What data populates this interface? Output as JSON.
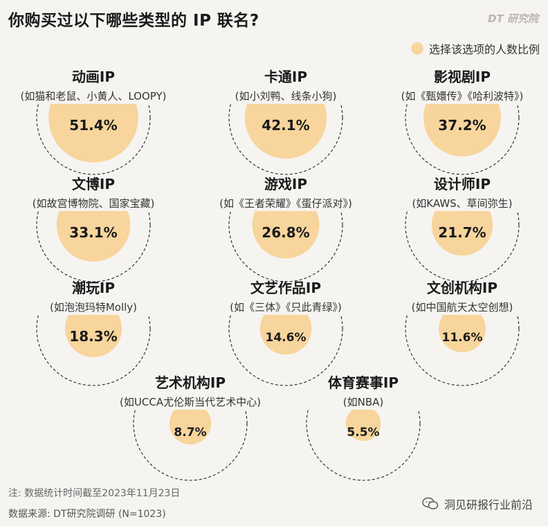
{
  "header": {
    "title": "你购买过以下哪些类型的 IP 联名?",
    "brand": "DT 研究院"
  },
  "legend": {
    "label": "选择该选项的人数比例",
    "color": "#f7d59c"
  },
  "chart_data": {
    "type": "bubble-percentage",
    "unit": "%",
    "fill_color": "#f7d59c",
    "items": [
      {
        "name": "动画IP",
        "subtitle": "(如猫和老鼠、小黄人、LOOPY)",
        "value": 51.4,
        "label": "51.4%"
      },
      {
        "name": "卡通IP",
        "subtitle": "(如小刘鸭、线条小狗)",
        "value": 42.1,
        "label": "42.1%"
      },
      {
        "name": "影视剧IP",
        "subtitle": "(如《甄嬛传》《哈利波特》)",
        "value": 37.2,
        "label": "37.2%"
      },
      {
        "name": "文博IP",
        "subtitle": "(如故宫博物院、国家宝藏)",
        "value": 33.1,
        "label": "33.1%"
      },
      {
        "name": "游戏IP",
        "subtitle": "(如《王者荣耀》《蛋仔派对》)",
        "value": 26.8,
        "label": "26.8%"
      },
      {
        "name": "设计师IP",
        "subtitle": "(如KAWS、草间弥生)",
        "value": 21.7,
        "label": "21.7%"
      },
      {
        "name": "潮玩IP",
        "subtitle": "(如泡泡玛特Molly)",
        "value": 18.3,
        "label": "18.3%"
      },
      {
        "name": "文艺作品IP",
        "subtitle": "(如《三体》《只此青绿》)",
        "value": 14.6,
        "label": "14.6%"
      },
      {
        "name": "文创机构IP",
        "subtitle": "(如中国航天太空创想)",
        "value": 11.6,
        "label": "11.6%"
      },
      {
        "name": "艺术机构IP",
        "subtitle": "(如UCCA尤伦斯当代艺术中心)",
        "value": 8.7,
        "label": "8.7%"
      },
      {
        "name": "体育赛事IP",
        "subtitle": "(如NBA)",
        "value": 5.5,
        "label": "5.5%"
      }
    ]
  },
  "footer": {
    "note": "注: 数据统计时间截至2023年11月23日",
    "source": "数据来源: DT研究院调研 (N=1023)",
    "watermark": "洞见研报行业前沿",
    "watermark_icon": "wechat-icon"
  }
}
